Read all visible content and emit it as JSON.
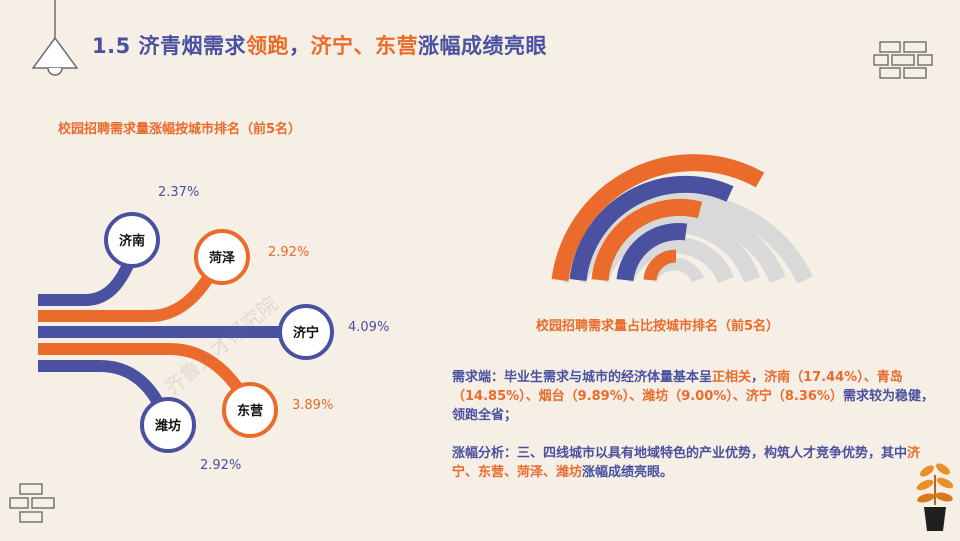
{
  "title": {
    "prefix": "1.5 济青烟需求",
    "hl1": "领跑",
    "mid": "，",
    "hl2": "济宁、东营",
    "suffix": "涨幅成绩亮眼"
  },
  "left_chart": {
    "title": "校园招聘需求量涨幅按城市排名（前5名）",
    "cities": [
      {
        "name": "济南",
        "pct": "2.37%",
        "color": "#4a51a0"
      },
      {
        "name": "菏泽",
        "pct": "2.92%",
        "color": "#ea6b2c"
      },
      {
        "name": "济宁",
        "pct": "4.09%",
        "color": "#4a51a0"
      },
      {
        "name": "东营",
        "pct": "3.89%",
        "color": "#ea6b2c"
      },
      {
        "name": "潍坊",
        "pct": "2.92%",
        "color": "#4a51a0"
      }
    ]
  },
  "right_chart": {
    "caption": "校园招聘需求量占比按城市排名（前5名）"
  },
  "analysis": {
    "p1_label": "需求端：",
    "p1_text1": "毕业生需求与城市的经济体量基本呈",
    "p1_hl1": "正相关",
    "p1_text2": "，",
    "p1_hl2": "济南（17.44%）、青岛（14.85%）、烟台（9.89%）、潍坊（9.00%）、济宁（8.36%）",
    "p1_text3": "需求较为稳健，领跑全省；",
    "p2_label": "涨幅分析：",
    "p2_text1": "三、四线城市以具有地域特色的产业优势，构筑人才竞争优势，其中",
    "p2_hl": "济宁、东营、菏泽、潍坊",
    "p2_text2": "涨幅成绩亮眼。"
  },
  "watermark": "齐鲁人才研究院",
  "colors": {
    "blue": "#4a51a0",
    "orange": "#ea6b2c",
    "grey": "#d9d9d9",
    "bg": "#f6efe5"
  }
}
